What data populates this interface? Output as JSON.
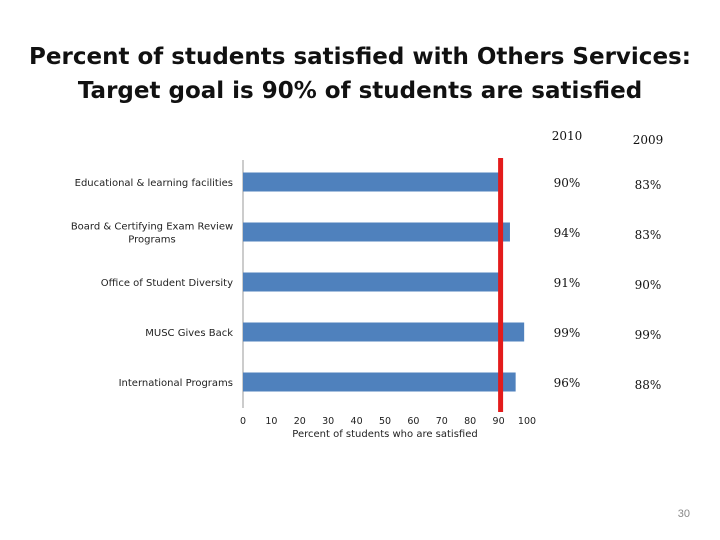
{
  "slide": {
    "title_line1": "Percent of students satisfied with Others Services:",
    "title_line2": "Target goal is 90% of students are satisfied",
    "page_number": "30"
  },
  "chart_data": {
    "type": "bar",
    "orientation": "horizontal",
    "categories": [
      "Educational & learning facilities",
      "Board & Certifying Exam Review Programs",
      "Office of Student Diversity",
      "MUSC Gives Back",
      "International Programs"
    ],
    "values": [
      90,
      94,
      91,
      99,
      96
    ],
    "xlabel": "Percent of students who are satisfied",
    "xlim": [
      0,
      100
    ],
    "xticks": [
      0,
      10,
      20,
      30,
      40,
      50,
      60,
      70,
      80,
      90,
      100
    ],
    "grid": false,
    "bar_color": "#4f81bd",
    "target_line": {
      "value": 90,
      "color": "#e31b1b"
    },
    "table": {
      "columns": [
        "2010",
        "2009"
      ],
      "rows": [
        [
          "90%",
          "83%"
        ],
        [
          "94%",
          "83%"
        ],
        [
          "91%",
          "90%"
        ],
        [
          "99%",
          "99%"
        ],
        [
          "96%",
          "88%"
        ]
      ]
    }
  }
}
